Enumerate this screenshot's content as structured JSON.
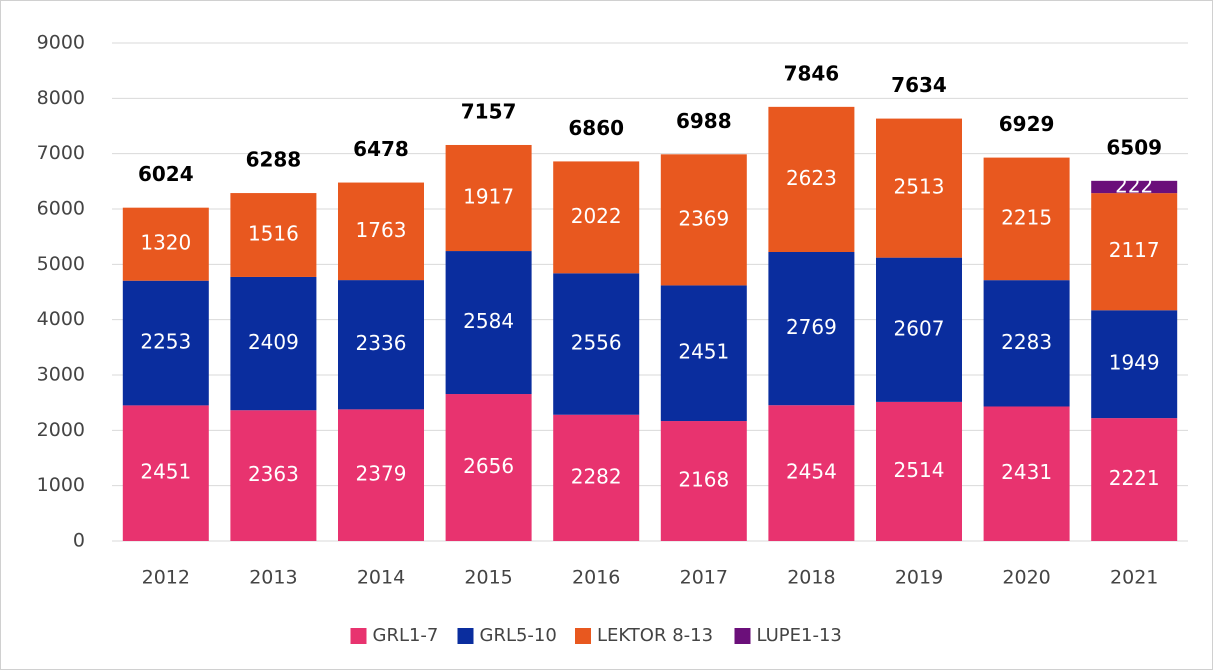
{
  "chart_data": {
    "type": "stacked_bar",
    "categories": [
      "2012",
      "2013",
      "2014",
      "2015",
      "2016",
      "2017",
      "2018",
      "2019",
      "2020",
      "2021"
    ],
    "series": [
      {
        "name": "GRL1-7",
        "color": "#e8336f",
        "values": [
          2451,
          2363,
          2379,
          2656,
          2282,
          2168,
          2454,
          2514,
          2431,
          2221
        ]
      },
      {
        "name": "GRL5-10",
        "color": "#0a2d9e",
        "values": [
          2253,
          2409,
          2336,
          2584,
          2556,
          2451,
          2769,
          2607,
          2283,
          1949
        ]
      },
      {
        "name": "LEKTOR 8-13",
        "color": "#e8581f",
        "values": [
          1320,
          1516,
          1763,
          1917,
          2022,
          2369,
          2623,
          2513,
          2215,
          2117
        ]
      },
      {
        "name": "LUPE1-13",
        "color": "#6b0f7a",
        "values": [
          null,
          null,
          null,
          null,
          null,
          null,
          null,
          null,
          null,
          222
        ]
      }
    ],
    "totals": [
      6024,
      6288,
      6478,
      7157,
      6860,
      6988,
      7846,
      7634,
      6929,
      6509
    ],
    "ylim": [
      0,
      9000
    ],
    "yticks": [
      0,
      1000,
      2000,
      3000,
      4000,
      5000,
      6000,
      7000,
      8000,
      9000
    ],
    "grid": true,
    "legend": "bottom"
  }
}
